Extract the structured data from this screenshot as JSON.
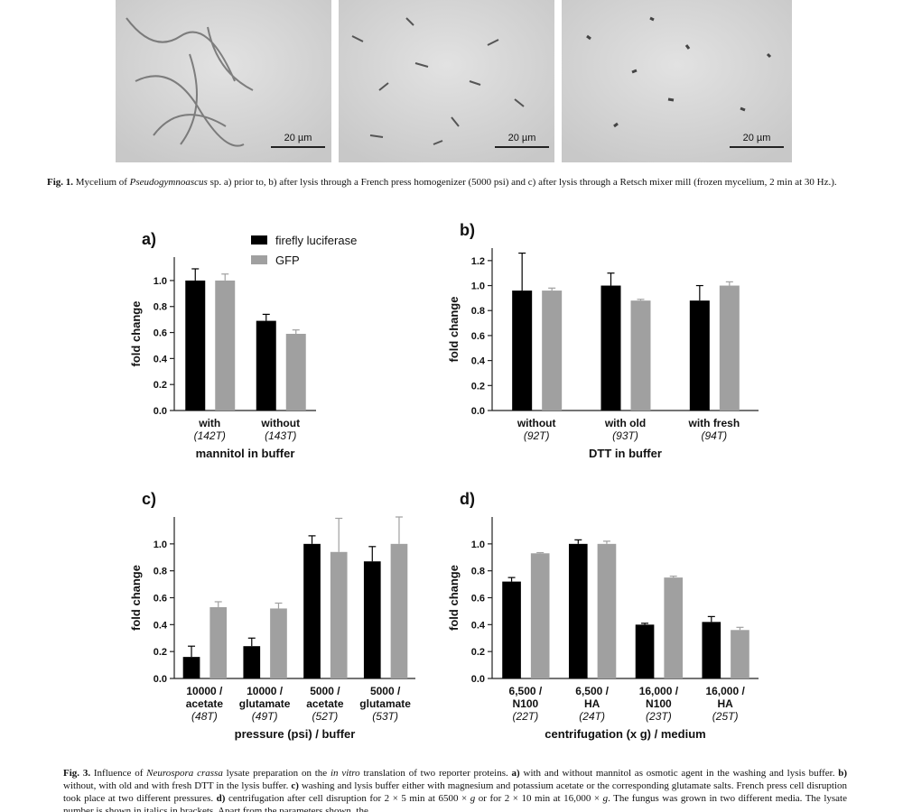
{
  "figure1": {
    "scale_bar": "20 µm",
    "caption": [
      "Fig. 1.",
      "Mycelium of",
      "Pseudogymnoascus",
      "sp. a) prior to, b) after lysis through a French press homogenizer (5000 psi) and c) after lysis through a Retsch mixer mill (frozen mycelium, 2 min at 30 Hz.)."
    ]
  },
  "chart_data": [
    {
      "type": "bar",
      "panel": "a)",
      "ylabel": "fold change",
      "xlabel": "mannitol in buffer",
      "categories": [
        "with",
        "without"
      ],
      "sublabels": [
        "(142T)",
        "(143T)"
      ],
      "ylim": [
        0,
        1.18
      ],
      "yticks": [
        {
          "value": 0,
          "label": "0.0"
        },
        0.2,
        0.4,
        0.6,
        0.8,
        {
          "value": 1,
          "label": "1.0"
        }
      ],
      "series": [
        {
          "name": "firefly luciferase",
          "color": "#000000",
          "values": [
            1.0,
            0.69
          ],
          "errors": [
            0.09,
            0.05
          ]
        },
        {
          "name": "GFP",
          "color": "#a0a0a0",
          "values": [
            1.0,
            0.59
          ],
          "errors": [
            0.05,
            0.03
          ]
        }
      ]
    },
    {
      "type": "bar",
      "panel": "b)",
      "ylabel": "fold change",
      "xlabel": "DTT in buffer",
      "categories": [
        "without",
        "with old",
        "with fresh"
      ],
      "sublabels": [
        "(92T)",
        "(93T)",
        "(94T)"
      ],
      "ylim": [
        0,
        1.3
      ],
      "yticks": [
        {
          "value": 0,
          "label": "0.0"
        },
        0.2,
        0.4,
        0.6,
        0.8,
        {
          "value": 1,
          "label": "1.0"
        },
        1.2
      ],
      "series": [
        {
          "color": "#000000",
          "values": [
            0.96,
            1.0,
            0.88
          ],
          "errors": [
            0.3,
            0.1,
            0.12
          ]
        },
        {
          "color": "#a0a0a0",
          "values": [
            0.96,
            0.88,
            1.0
          ],
          "errors": [
            0.02,
            0.01,
            0.03
          ]
        }
      ]
    },
    {
      "type": "bar",
      "panel": "c)",
      "ylabel": "fold change",
      "xlabel": "pressure (psi) / buffer",
      "categories": [
        [
          "10000 /",
          "acetate"
        ],
        [
          "10000 /",
          "glutamate"
        ],
        [
          "5000 /",
          "acetate"
        ],
        [
          "5000 /",
          "glutamate"
        ]
      ],
      "sublabels": [
        "(48T)",
        "(49T)",
        "(52T)",
        "(53T)"
      ],
      "ylim": [
        0,
        1.2
      ],
      "yticks": [
        {
          "value": 0,
          "label": "0.0"
        },
        0.2,
        0.4,
        0.6,
        0.8,
        {
          "value": 1,
          "label": "1.0"
        }
      ],
      "series": [
        {
          "color": "#000000",
          "values": [
            0.16,
            0.24,
            1.0,
            0.87
          ],
          "errors": [
            0.08,
            0.06,
            0.06,
            0.11
          ]
        },
        {
          "color": "#a0a0a0",
          "values": [
            0.53,
            0.52,
            0.94,
            1.0
          ],
          "errors": [
            0.04,
            0.04,
            0.25,
            0.2
          ]
        }
      ]
    },
    {
      "type": "bar",
      "panel": "d)",
      "ylabel": "fold change",
      "xlabel": "centrifugation (x g) / medium",
      "categories": [
        [
          "6,500 /",
          "N100"
        ],
        [
          "6,500 /",
          "HA"
        ],
        [
          "16,000 /",
          "N100"
        ],
        [
          "16,000 /",
          "HA"
        ]
      ],
      "sublabels": [
        "(22T)",
        "(24T)",
        "(23T)",
        "(25T)"
      ],
      "ylim": [
        0,
        1.2
      ],
      "yticks": [
        {
          "value": 0,
          "label": "0.0"
        },
        0.2,
        0.4,
        0.6,
        0.8,
        {
          "value": 1,
          "label": "1.0"
        }
      ],
      "series": [
        {
          "color": "#000000",
          "values": [
            0.72,
            1.0,
            0.4,
            0.42
          ],
          "errors": [
            0.03,
            0.03,
            0.01,
            0.04
          ]
        },
        {
          "color": "#a0a0a0",
          "values": [
            0.93,
            1.0,
            0.75,
            0.36
          ],
          "errors": [
            0.005,
            0.02,
            0.01,
            0.02
          ]
        }
      ]
    }
  ],
  "figure3": {
    "caption": [
      "Fig. 3.",
      "Influence of",
      "Neurospora crassa",
      "lysate preparation on the",
      "in vitro",
      "translation of two reporter proteins.",
      "a)",
      "with and without mannitol as osmotic agent in the washing and lysis buffer.",
      "b)",
      "without, with old and with fresh DTT in the lysis buffer.",
      "c)",
      "washing and lysis buffer either with magnesium and potassium acetate or the corresponding glutamate salts. French press cell disruption took place at two different pressures.",
      "d)",
      "centrifugation after cell disruption for 2 × 5 min at 6500 ×",
      "g",
      "or for 2 × 10 min at 16,000 ×",
      "g",
      ". The fungus was grown in two different media. The lysate number is shown in italics in brackets. Apart from the parameters shown, the"
    ]
  }
}
